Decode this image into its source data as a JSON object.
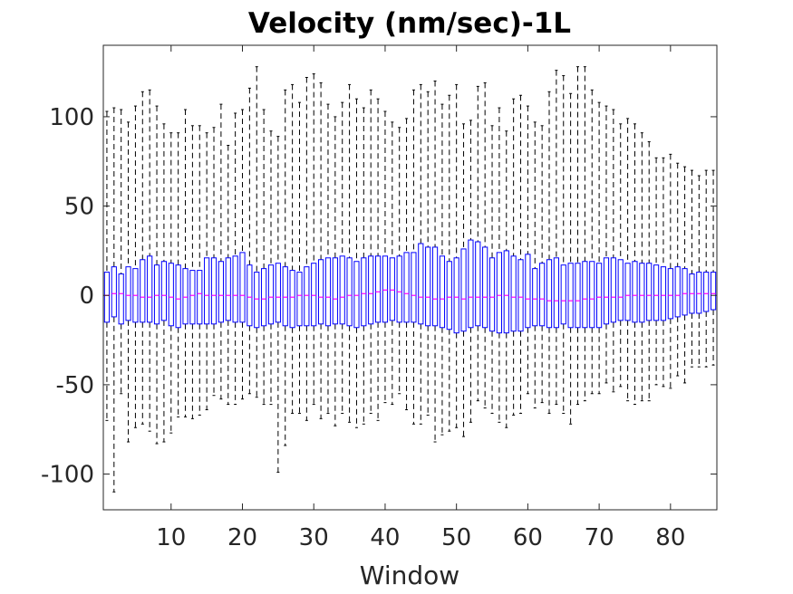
{
  "chart_data": {
    "type": "boxplot",
    "title": "Velocity (nm/sec)-1L",
    "xlabel": "Window",
    "ylabel": "",
    "xlim": [
      0.5,
      86.5
    ],
    "ylim": [
      -120,
      140
    ],
    "xticks": [
      10,
      20,
      30,
      40,
      50,
      60,
      70,
      80
    ],
    "yticks": [
      -100,
      -50,
      0,
      50,
      100
    ],
    "ytick_labels": [
      "-100",
      "-50",
      "0",
      "50",
      "100"
    ],
    "colors": {
      "box": "#0000ff",
      "median": "#ff00ff",
      "whisker": "#000000",
      "axes": "#262626"
    },
    "whisker_upper": [
      103,
      105,
      104,
      97,
      106,
      114,
      115,
      106,
      96,
      91,
      91,
      104,
      95,
      95,
      91,
      94,
      107,
      84,
      102,
      104,
      116,
      128,
      104,
      92,
      89,
      115,
      118,
      108,
      122,
      124,
      119,
      107,
      100,
      108,
      118,
      110,
      105,
      115,
      110,
      103,
      97,
      94,
      99,
      115,
      118,
      114,
      120,
      107,
      112,
      118,
      96,
      98,
      117,
      119,
      95,
      105,
      92,
      110,
      112,
      106,
      97,
      95,
      114,
      126,
      123,
      113,
      128,
      128,
      115,
      108,
      106,
      104,
      96,
      99,
      96,
      91,
      86,
      77,
      77,
      79,
      74,
      72,
      70,
      67,
      70,
      70
    ],
    "q3": [
      13,
      16,
      12,
      16,
      15,
      20,
      22,
      17,
      19,
      18,
      17,
      15,
      14,
      14,
      21,
      21,
      19,
      21,
      22,
      24,
      17,
      13,
      15,
      17,
      18,
      16,
      14,
      13,
      16,
      18,
      20,
      21,
      21,
      22,
      21,
      19,
      21,
      22,
      22,
      22,
      21,
      22,
      24,
      24,
      29,
      27,
      27,
      22,
      19,
      21,
      26,
      31,
      30,
      27,
      21,
      24,
      25,
      22,
      20,
      23,
      15,
      18,
      20,
      21,
      17,
      18,
      18,
      19,
      19,
      18,
      21,
      21,
      20,
      18,
      19,
      18,
      18,
      17,
      16,
      15,
      16,
      15,
      12,
      13,
      13,
      13
    ],
    "median": [
      0,
      1,
      1,
      0,
      0,
      -1,
      -1,
      0,
      0,
      -1,
      -2,
      -1,
      0,
      1,
      0,
      0,
      0,
      0,
      0,
      0,
      -1,
      -2,
      -2,
      -1,
      -1,
      -1,
      -1,
      0,
      0,
      0,
      -1,
      -1,
      -2,
      -1,
      0,
      0,
      1,
      1,
      2,
      3,
      3,
      2,
      1,
      0,
      -1,
      -1,
      -2,
      -2,
      -1,
      -1,
      -2,
      -1,
      -1,
      -1,
      -1,
      0,
      0,
      -1,
      -1,
      -2,
      -2,
      -2,
      -3,
      -3,
      -3,
      -3,
      -3,
      -2,
      -2,
      -1,
      -1,
      -1,
      -1,
      0,
      0,
      0,
      0,
      0,
      0,
      0,
      0,
      1,
      1,
      1,
      1,
      1
    ],
    "q1": [
      -15,
      -12,
      -16,
      -14,
      -15,
      -15,
      -15,
      -16,
      -14,
      -17,
      -18,
      -16,
      -16,
      -16,
      -16,
      -16,
      -15,
      -14,
      -15,
      -15,
      -17,
      -18,
      -17,
      -16,
      -15,
      -17,
      -18,
      -17,
      -17,
      -17,
      -16,
      -17,
      -16,
      -16,
      -17,
      -18,
      -17,
      -16,
      -15,
      -15,
      -14,
      -15,
      -15,
      -15,
      -16,
      -17,
      -17,
      -18,
      -19,
      -21,
      -20,
      -18,
      -17,
      -18,
      -20,
      -21,
      -21,
      -20,
      -20,
      -18,
      -17,
      -17,
      -18,
      -18,
      -16,
      -18,
      -18,
      -18,
      -18,
      -18,
      -16,
      -15,
      -14,
      -14,
      -15,
      -15,
      -14,
      -14,
      -14,
      -13,
      -12,
      -11,
      -10,
      -10,
      -9,
      -8
    ],
    "whisker_lower": [
      -70,
      -110,
      -55,
      -82,
      -74,
      -72,
      -76,
      -83,
      -82,
      -77,
      -68,
      -68,
      -69,
      -67,
      -64,
      -56,
      -58,
      -61,
      -61,
      -58,
      -55,
      -57,
      -61,
      -61,
      -99,
      -84,
      -66,
      -66,
      -70,
      -61,
      -69,
      -66,
      -73,
      -66,
      -71,
      -74,
      -72,
      -66,
      -70,
      -60,
      -61,
      -55,
      -64,
      -72,
      -72,
      -67,
      -82,
      -78,
      -76,
      -74,
      -79,
      -71,
      -59,
      -63,
      -66,
      -71,
      -74,
      -67,
      -66,
      -55,
      -63,
      -60,
      -66,
      -61,
      -66,
      -72,
      -61,
      -59,
      -55,
      -55,
      -49,
      -54,
      -51,
      -59,
      -61,
      -59,
      -59,
      -50,
      -51,
      -52,
      -45,
      -49,
      -40,
      -40,
      -40,
      -39
    ]
  }
}
